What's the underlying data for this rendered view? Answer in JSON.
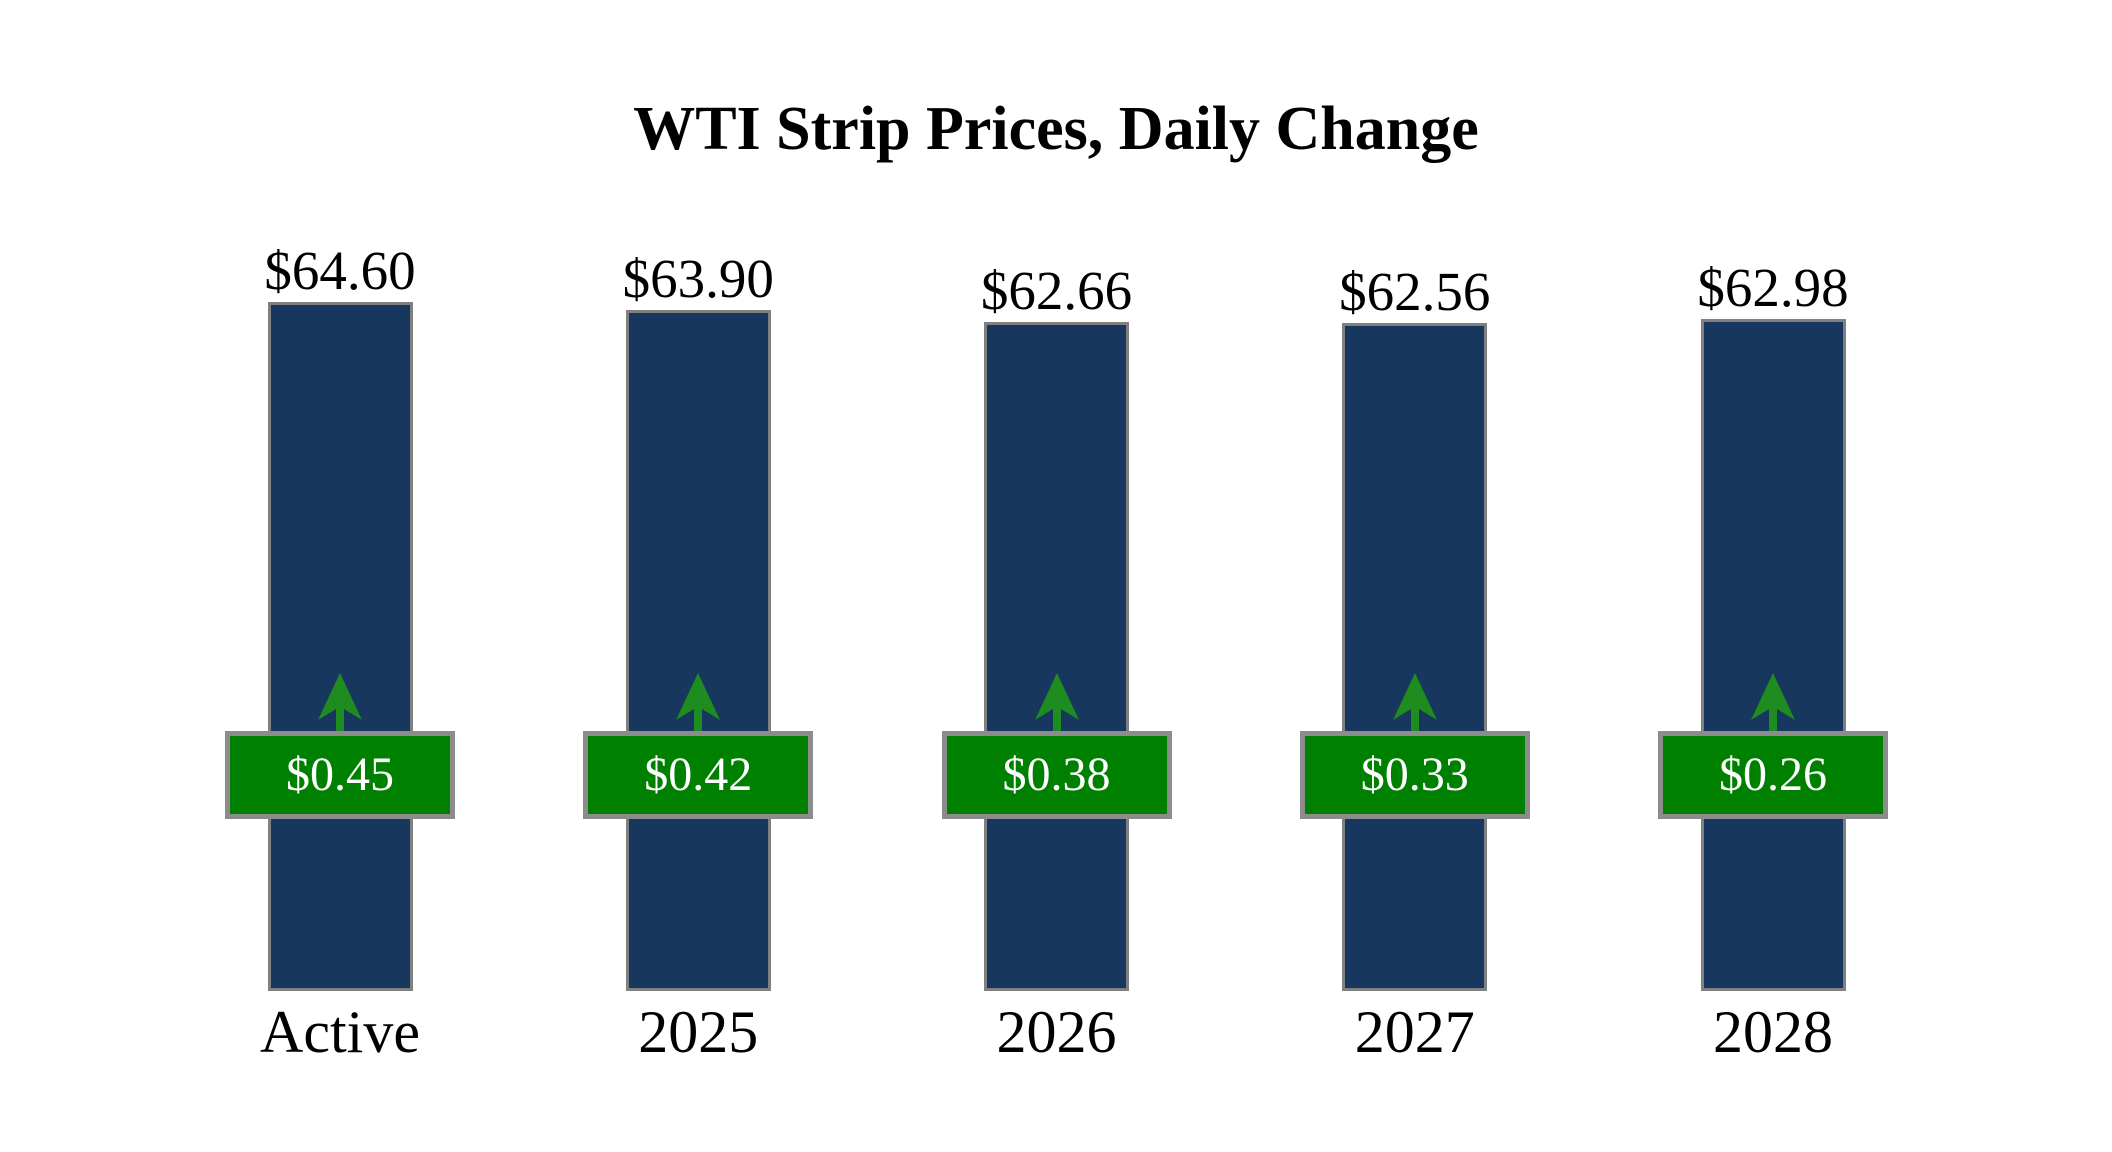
{
  "title": "WTI Strip Prices, Daily Change",
  "colors": {
    "background": "#FFFFFF",
    "bar": "#17375E",
    "bar_border": "#808080",
    "badge": "#008000",
    "badge_border": "#8C8C8C",
    "badge_text": "#FFFFFF",
    "arrow": "#1E8C1E",
    "text": "#000000"
  },
  "icons": {
    "up_arrow": "up-arrow-icon"
  },
  "chart_data": {
    "type": "bar",
    "title": "WTI Strip Prices, Daily Change",
    "xlabel": "",
    "ylabel": "",
    "categories": [
      "Active",
      "2025",
      "2026",
      "2027",
      "2028"
    ],
    "series": [
      {
        "name": "Strip Price",
        "values": [
          64.6,
          63.9,
          62.66,
          62.56,
          62.98
        ],
        "labels": [
          "$64.60",
          "$63.90",
          "$62.66",
          "$62.56",
          "$62.98"
        ],
        "label_position": "above-bar"
      },
      {
        "name": "Daily Change",
        "values": [
          0.45,
          0.42,
          0.38,
          0.33,
          0.26
        ],
        "labels": [
          "$0.45",
          "$0.42",
          "$0.38",
          "$0.33",
          "$0.26"
        ],
        "direction": "up",
        "label_position": "badge-overlay"
      }
    ],
    "legend": false,
    "grid": false,
    "axes_hidden": true
  }
}
